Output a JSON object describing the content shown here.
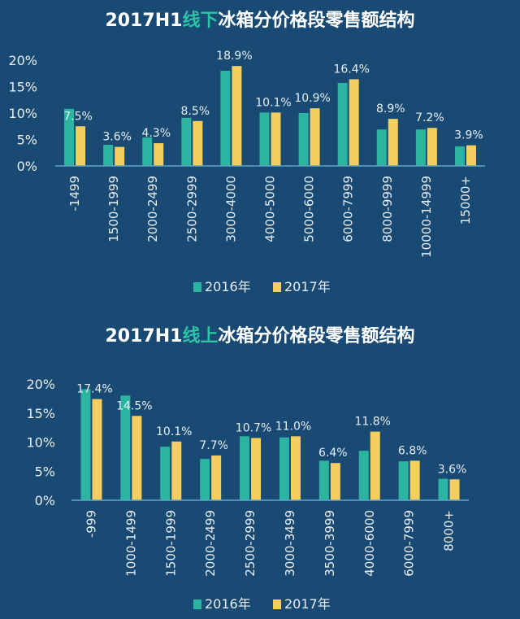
{
  "colors": {
    "background": "#194a73",
    "series_2016": "#2bb5a0",
    "series_2017": "#f4cf5f",
    "title": "#ffffff",
    "title_highlight": "#2bc4a6",
    "text": "#e8eef4"
  },
  "chart_data": [
    {
      "type": "bar",
      "title_parts": [
        "2017H1",
        "线下",
        "冰箱分价格段零售额结构"
      ],
      "categories": [
        "-1499",
        "1500-1999",
        "2000-2499",
        "2500-2999",
        "3000-4000",
        "4000-5000",
        "5000-6000",
        "6000-7999",
        "8000-9999",
        "10000-14999",
        "15000+"
      ],
      "yticks": [
        "0%",
        "5%",
        "10%",
        "15%",
        "20%"
      ],
      "ylim": [
        0,
        20
      ],
      "series": [
        {
          "name": "2016年",
          "values": [
            10.8,
            4.0,
            5.4,
            9.1,
            18.0,
            10.1,
            10.0,
            15.7,
            6.9,
            6.9,
            3.7
          ]
        },
        {
          "name": "2017年",
          "values": [
            7.5,
            3.6,
            4.3,
            8.5,
            18.9,
            10.1,
            10.9,
            16.4,
            8.9,
            7.2,
            3.9
          ]
        }
      ],
      "data_labels": [
        "7.5%",
        "3.6%",
        "4.3%",
        "8.5%",
        "18.9%",
        "10.1%",
        "10.9%",
        "16.4%",
        "8.9%",
        "7.2%",
        "3.9%"
      ],
      "legend": "bottom"
    },
    {
      "type": "bar",
      "title_parts": [
        "2017H1",
        "线上",
        "冰箱分价格段零售额结构"
      ],
      "categories": [
        "-999",
        "1000-1499",
        "1500-1999",
        "2000-2499",
        "2500-2999",
        "3000-3499",
        "3500-3999",
        "4000-6000",
        "6000-7999",
        "8000+"
      ],
      "yticks": [
        "0%",
        "5%",
        "10%",
        "15%",
        "20%"
      ],
      "ylim": [
        0,
        20
      ],
      "series": [
        {
          "name": "2016年",
          "values": [
            19.1,
            18.0,
            9.2,
            7.1,
            11.0,
            10.8,
            6.8,
            8.5,
            6.7,
            3.7
          ]
        },
        {
          "name": "2017年",
          "values": [
            17.4,
            14.5,
            10.1,
            7.7,
            10.7,
            11.0,
            6.4,
            11.8,
            6.8,
            3.6
          ]
        }
      ],
      "data_labels": [
        "17.4%",
        "14.5%",
        "10.1%",
        "7.7%",
        "10.7%",
        "11.0%",
        "6.4%",
        "11.8%",
        "6.8%",
        "3.6%"
      ],
      "legend": "bottom"
    }
  ]
}
